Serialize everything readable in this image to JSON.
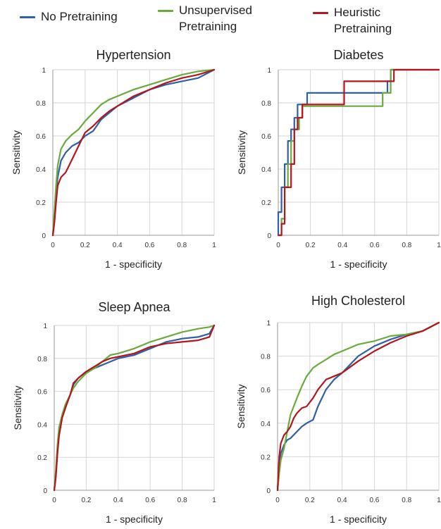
{
  "legend": [
    {
      "name": "No Pretraining",
      "color": "#2f5fa8"
    },
    {
      "name": "Unsupervised Pretraining",
      "color": "#6aaa3f"
    },
    {
      "name": "Heuristic Pretraining",
      "color": "#b0171e"
    }
  ],
  "chart_data": [
    {
      "type": "line",
      "title": "Hypertension",
      "xlabel": "1 - specificity",
      "ylabel": "Sensitivity",
      "xlim": [
        0,
        1
      ],
      "ylim": [
        0,
        1
      ],
      "xticks": [
        "0",
        "0.2",
        "0.4",
        "0.6",
        "0.8",
        "1"
      ],
      "yticks": [
        "0",
        "0.2",
        "0.4",
        "0.6",
        "0.8",
        "1"
      ],
      "grid": true,
      "series": [
        {
          "name": "No Pretraining",
          "x": [
            0,
            0.01,
            0.02,
            0.03,
            0.05,
            0.08,
            0.12,
            0.16,
            0.2,
            0.25,
            0.3,
            0.35,
            0.4,
            0.5,
            0.6,
            0.7,
            0.8,
            0.9,
            1
          ],
          "y": [
            0,
            0.1,
            0.25,
            0.35,
            0.45,
            0.5,
            0.54,
            0.56,
            0.6,
            0.63,
            0.7,
            0.74,
            0.78,
            0.83,
            0.88,
            0.91,
            0.93,
            0.95,
            1
          ]
        },
        {
          "name": "Unsupervised Pretraining",
          "x": [
            0,
            0.01,
            0.02,
            0.03,
            0.05,
            0.08,
            0.12,
            0.16,
            0.2,
            0.25,
            0.3,
            0.35,
            0.4,
            0.5,
            0.6,
            0.7,
            0.8,
            0.9,
            1
          ],
          "y": [
            0,
            0.15,
            0.3,
            0.42,
            0.52,
            0.57,
            0.61,
            0.64,
            0.69,
            0.74,
            0.79,
            0.82,
            0.84,
            0.88,
            0.91,
            0.94,
            0.97,
            0.99,
            1
          ]
        },
        {
          "name": "Heuristic Pretraining",
          "x": [
            0,
            0.01,
            0.02,
            0.03,
            0.05,
            0.08,
            0.12,
            0.16,
            0.2,
            0.25,
            0.3,
            0.35,
            0.4,
            0.5,
            0.6,
            0.7,
            0.8,
            0.9,
            1
          ],
          "y": [
            0,
            0.08,
            0.2,
            0.3,
            0.35,
            0.38,
            0.46,
            0.54,
            0.62,
            0.66,
            0.71,
            0.75,
            0.78,
            0.84,
            0.88,
            0.92,
            0.95,
            0.97,
            1
          ]
        }
      ]
    },
    {
      "type": "line",
      "title": "Diabetes",
      "xlabel": "1 - specificity",
      "ylabel": "Sensitivity",
      "xlim": [
        0,
        1
      ],
      "ylim": [
        0,
        1
      ],
      "xticks": [
        "0",
        "0.2",
        "0.4",
        "0.6",
        "0.8",
        "1"
      ],
      "yticks": [
        "0",
        "0.2",
        "0.4",
        "0.6",
        "0.8",
        "1"
      ],
      "grid": true,
      "series": [
        {
          "name": "No Pretraining",
          "x": [
            0,
            0,
            0.02,
            0.02,
            0.04,
            0.04,
            0.06,
            0.06,
            0.08,
            0.08,
            0.1,
            0.1,
            0.12,
            0.12,
            0.18,
            0.18,
            0.68,
            0.68,
            0.7,
            0.7,
            1
          ],
          "y": [
            0,
            0.14,
            0.14,
            0.29,
            0.29,
            0.43,
            0.43,
            0.57,
            0.57,
            0.64,
            0.64,
            0.71,
            0.71,
            0.79,
            0.79,
            0.86,
            0.86,
            0.93,
            0.93,
            1,
            1
          ]
        },
        {
          "name": "Unsupervised Pretraining",
          "x": [
            0,
            0.02,
            0.02,
            0.04,
            0.04,
            0.06,
            0.06,
            0.08,
            0.08,
            0.1,
            0.1,
            0.13,
            0.13,
            0.15,
            0.15,
            0.2,
            0.2,
            0.65,
            0.65,
            0.7,
            0.7,
            1
          ],
          "y": [
            0,
            0,
            0.1,
            0.1,
            0.29,
            0.29,
            0.43,
            0.43,
            0.57,
            0.57,
            0.64,
            0.64,
            0.71,
            0.71,
            0.78,
            0.78,
            0.78,
            0.78,
            0.86,
            0.86,
            1,
            1
          ]
        },
        {
          "name": "Heuristic Pretraining",
          "x": [
            0,
            0.02,
            0.02,
            0.04,
            0.04,
            0.08,
            0.08,
            0.1,
            0.1,
            0.12,
            0.12,
            0.15,
            0.15,
            0.41,
            0.41,
            0.68,
            0.68,
            0.72,
            0.72,
            1
          ],
          "y": [
            0,
            0,
            0.07,
            0.07,
            0.29,
            0.29,
            0.43,
            0.43,
            0.64,
            0.64,
            0.71,
            0.71,
            0.79,
            0.79,
            0.93,
            0.93,
            0.93,
            0.93,
            1,
            1
          ]
        }
      ]
    },
    {
      "type": "line",
      "title": "Sleep Apnea",
      "xlabel": "1 - specificity",
      "ylabel": "Sensitivity",
      "xlim": [
        0,
        1
      ],
      "ylim": [
        0,
        1
      ],
      "xticks": [
        "0",
        "0.2",
        "0.4",
        "0.6",
        "0.8",
        "1"
      ],
      "yticks": [
        "0",
        "0.2",
        "0.4",
        "0.6",
        "0.8",
        "1"
      ],
      "grid": true,
      "series": [
        {
          "name": "No Pretraining",
          "x": [
            0,
            0.01,
            0.02,
            0.03,
            0.05,
            0.07,
            0.1,
            0.12,
            0.15,
            0.2,
            0.25,
            0.3,
            0.35,
            0.4,
            0.5,
            0.6,
            0.7,
            0.8,
            0.9,
            0.97,
            1
          ],
          "y": [
            0,
            0.1,
            0.25,
            0.35,
            0.45,
            0.52,
            0.58,
            0.64,
            0.68,
            0.72,
            0.74,
            0.76,
            0.78,
            0.8,
            0.82,
            0.86,
            0.9,
            0.92,
            0.93,
            0.95,
            1
          ]
        },
        {
          "name": "Unsupervised Pretraining",
          "x": [
            0,
            0.01,
            0.02,
            0.03,
            0.05,
            0.07,
            0.1,
            0.12,
            0.15,
            0.2,
            0.25,
            0.3,
            0.35,
            0.4,
            0.5,
            0.6,
            0.7,
            0.8,
            0.9,
            0.97,
            1
          ],
          "y": [
            0,
            0.12,
            0.27,
            0.38,
            0.46,
            0.52,
            0.58,
            0.62,
            0.66,
            0.71,
            0.74,
            0.78,
            0.82,
            0.83,
            0.86,
            0.9,
            0.93,
            0.96,
            0.98,
            0.99,
            1
          ]
        },
        {
          "name": "Heuristic Pretraining",
          "x": [
            0,
            0.01,
            0.02,
            0.03,
            0.05,
            0.07,
            0.1,
            0.12,
            0.15,
            0.2,
            0.25,
            0.3,
            0.35,
            0.4,
            0.5,
            0.6,
            0.7,
            0.8,
            0.9,
            0.97,
            1
          ],
          "y": [
            0,
            0.08,
            0.22,
            0.33,
            0.44,
            0.5,
            0.58,
            0.65,
            0.68,
            0.72,
            0.75,
            0.78,
            0.8,
            0.81,
            0.83,
            0.87,
            0.89,
            0.9,
            0.91,
            0.93,
            1
          ]
        }
      ]
    },
    {
      "type": "line",
      "title": "High Cholesterol",
      "xlabel": "1 - specificity",
      "ylabel": "Sensitivity",
      "xlim": [
        0,
        1
      ],
      "ylim": [
        0,
        1
      ],
      "xticks": [
        "0",
        "0.2",
        "0.4",
        "0.6",
        "0.8",
        "1"
      ],
      "yticks": [
        "0",
        "0.2",
        "0.4",
        "0.6",
        "0.8",
        "1"
      ],
      "grid": true,
      "series": [
        {
          "name": "No Pretraining",
          "x": [
            0,
            0.01,
            0.02,
            0.04,
            0.06,
            0.08,
            0.1,
            0.12,
            0.15,
            0.18,
            0.22,
            0.25,
            0.3,
            0.35,
            0.4,
            0.5,
            0.6,
            0.7,
            0.8,
            0.9,
            1
          ],
          "y": [
            0,
            0.15,
            0.22,
            0.27,
            0.3,
            0.31,
            0.33,
            0.35,
            0.38,
            0.4,
            0.42,
            0.5,
            0.6,
            0.66,
            0.7,
            0.8,
            0.86,
            0.9,
            0.93,
            0.95,
            1
          ]
        },
        {
          "name": "Unsupervised Pretraining",
          "x": [
            0,
            0.01,
            0.02,
            0.04,
            0.06,
            0.08,
            0.1,
            0.12,
            0.15,
            0.18,
            0.22,
            0.25,
            0.3,
            0.35,
            0.4,
            0.5,
            0.6,
            0.7,
            0.8,
            0.9,
            1
          ],
          "y": [
            0,
            0.1,
            0.18,
            0.25,
            0.35,
            0.45,
            0.5,
            0.55,
            0.62,
            0.68,
            0.73,
            0.75,
            0.78,
            0.81,
            0.83,
            0.87,
            0.89,
            0.92,
            0.93,
            0.95,
            1
          ]
        },
        {
          "name": "Heuristic Pretraining",
          "x": [
            0,
            0.01,
            0.02,
            0.04,
            0.06,
            0.08,
            0.1,
            0.12,
            0.15,
            0.18,
            0.22,
            0.25,
            0.3,
            0.35,
            0.4,
            0.5,
            0.6,
            0.7,
            0.8,
            0.9,
            1
          ],
          "y": [
            0,
            0.2,
            0.28,
            0.33,
            0.35,
            0.38,
            0.43,
            0.46,
            0.49,
            0.5,
            0.55,
            0.6,
            0.66,
            0.68,
            0.7,
            0.77,
            0.83,
            0.88,
            0.92,
            0.95,
            1
          ]
        }
      ]
    }
  ]
}
